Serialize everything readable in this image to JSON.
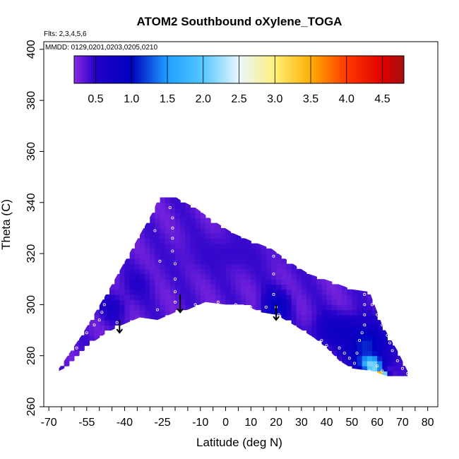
{
  "chart_data": {
    "type": "heatmap",
    "title": "ATOM2 Southbound oXylene_TOGA",
    "notes": {
      "flights": "Flts: 2,3,4,5,6",
      "dates": "MMDD: 0129,0201,0203,0205,0210"
    },
    "xlabel": "Latitude (deg N)",
    "ylabel": "Theta (C)",
    "xlim": [
      -72,
      84
    ],
    "ylim": [
      260,
      403
    ],
    "x_ticks": [
      -70,
      -65,
      -60,
      -55,
      -50,
      -45,
      -40,
      -35,
      -30,
      -25,
      -20,
      -15,
      -10,
      -5,
      0,
      5,
      10,
      15,
      20,
      25,
      30,
      35,
      40,
      45,
      50,
      55,
      60,
      65,
      70,
      75,
      80
    ],
    "x_tick_labels": [
      "-70",
      "-55",
      "-40",
      "-25",
      "-10",
      "0",
      "10",
      "20",
      "30",
      "40",
      "50",
      "60",
      "70",
      "80"
    ],
    "x_tick_label_values": [
      -70,
      -55,
      -40,
      -25,
      -10,
      0,
      10,
      20,
      30,
      40,
      50,
      60,
      70,
      80
    ],
    "y_tick_labels": [
      "260",
      "280",
      "300",
      "320",
      "340",
      "360",
      "380",
      "400"
    ],
    "y_tick_values": [
      260,
      280,
      300,
      320,
      340,
      360,
      380,
      400
    ],
    "colorbar": {
      "range": [
        0.2,
        4.8
      ],
      "tick_labels": [
        "0.5",
        "1.0",
        "1.5",
        "2.0",
        "2.5",
        "3.0",
        "3.5",
        "4.0",
        "4.5"
      ],
      "tick_values": [
        0.5,
        1.0,
        1.5,
        2.0,
        2.5,
        3.0,
        3.5,
        4.0,
        4.5
      ],
      "stops": [
        {
          "v": 0.2,
          "c": "#8a2be2"
        },
        {
          "v": 0.5,
          "c": "#2200c8"
        },
        {
          "v": 1.0,
          "c": "#0000c0"
        },
        {
          "v": 1.5,
          "c": "#1ea0ff"
        },
        {
          "v": 2.0,
          "c": "#55c8ff"
        },
        {
          "v": 2.5,
          "c": "#eaf6ff"
        },
        {
          "v": 3.0,
          "c": "#fff07a"
        },
        {
          "v": 3.5,
          "c": "#ffae00"
        },
        {
          "v": 4.0,
          "c": "#ff3800"
        },
        {
          "v": 4.5,
          "c": "#e00000"
        },
        {
          "v": 4.8,
          "c": "#a01010"
        }
      ]
    },
    "field": {
      "background_value": 0.35,
      "boundary_top": [
        [
          -66,
          275
        ],
        [
          -57,
          288
        ],
        [
          -45,
          308
        ],
        [
          -37,
          322
        ],
        [
          -29,
          336
        ],
        [
          -26,
          343
        ],
        [
          -21,
          343
        ],
        [
          -18,
          341
        ],
        [
          -12,
          338
        ],
        [
          -5,
          333
        ],
        [
          3,
          328
        ],
        [
          10,
          325
        ],
        [
          18,
          322
        ],
        [
          25,
          317
        ],
        [
          33,
          312
        ],
        [
          42,
          309
        ],
        [
          50,
          306
        ],
        [
          57,
          305
        ],
        [
          62,
          292
        ],
        [
          68,
          282
        ],
        [
          72,
          274
        ]
      ],
      "boundary_bottom": [
        [
          72,
          272
        ],
        [
          64,
          272
        ],
        [
          58,
          274
        ],
        [
          50,
          275
        ],
        [
          45,
          278
        ],
        [
          40,
          283
        ],
        [
          35,
          287
        ],
        [
          27,
          292
        ],
        [
          20,
          296
        ],
        [
          14,
          297
        ],
        [
          7,
          300
        ],
        [
          0,
          300
        ],
        [
          -8,
          301
        ],
        [
          -15,
          298
        ],
        [
          -20,
          297
        ],
        [
          -27,
          294
        ],
        [
          -34,
          295
        ],
        [
          -41,
          292
        ],
        [
          -47,
          289
        ],
        [
          -53,
          285
        ],
        [
          -58,
          280
        ],
        [
          -62,
          276
        ],
        [
          -66,
          274
        ]
      ],
      "features": [
        {
          "x": 20,
          "y": 299,
          "v": 1.0,
          "rx": 5,
          "ry": 6
        },
        {
          "x": -45,
          "y": 299,
          "v": 0.6,
          "rx": 5,
          "ry": 5
        },
        {
          "x": 55,
          "y": 285,
          "v": 1.2,
          "rx": 8,
          "ry": 7
        },
        {
          "x": 57,
          "y": 278,
          "v": 1.6,
          "rx": 5,
          "ry": 3
        },
        {
          "x": 58,
          "y": 276,
          "v": 2.4,
          "rx": 3,
          "ry": 2
        },
        {
          "x": 60,
          "y": 273,
          "v": 3.6,
          "rx": 2,
          "ry": 1.5
        },
        {
          "x": 62,
          "y": 272,
          "v": 4.3,
          "rx": 2,
          "ry": 1.2
        },
        {
          "x": 45,
          "y": 290,
          "v": 0.8,
          "rx": 10,
          "ry": 6
        },
        {
          "x": -35,
          "y": 308,
          "v": 0.5,
          "rx": 6,
          "ry": 6
        },
        {
          "x": 0,
          "y": 320,
          "v": 0.45,
          "rx": 20,
          "ry": 8
        }
      ]
    },
    "samples": [
      [
        -59,
        283
      ],
      [
        -55,
        289
      ],
      [
        -52,
        292
      ],
      [
        -50,
        294
      ],
      [
        -49,
        297
      ],
      [
        -48,
        300
      ],
      [
        -47,
        305
      ],
      [
        -46,
        310
      ],
      [
        -45,
        313
      ],
      [
        -45,
        318
      ],
      [
        -42,
        290
      ],
      [
        -43,
        293
      ],
      [
        -23,
        345
      ],
      [
        -22,
        343
      ],
      [
        -22,
        338
      ],
      [
        -21,
        334
      ],
      [
        -21,
        330
      ],
      [
        -21,
        326
      ],
      [
        -21,
        321
      ],
      [
        -20,
        316
      ],
      [
        -20,
        310
      ],
      [
        -20,
        305
      ],
      [
        -20,
        301
      ],
      [
        -28,
        329
      ],
      [
        -26,
        317
      ],
      [
        -27,
        298
      ],
      [
        -12,
        300
      ],
      [
        -3,
        301
      ],
      [
        4,
        300
      ],
      [
        10,
        299
      ],
      [
        16,
        299
      ],
      [
        19,
        319
      ],
      [
        19,
        312
      ],
      [
        19,
        304
      ],
      [
        20,
        299
      ],
      [
        21,
        296
      ],
      [
        22,
        293
      ],
      [
        38,
        286
      ],
      [
        40,
        284
      ],
      [
        45,
        283
      ],
      [
        47,
        281
      ],
      [
        49,
        279
      ],
      [
        51,
        277
      ],
      [
        52,
        281
      ],
      [
        53,
        286
      ],
      [
        54,
        289
      ],
      [
        55,
        292
      ],
      [
        55,
        296
      ],
      [
        55,
        300
      ],
      [
        55,
        304
      ],
      [
        58,
        300
      ],
      [
        60,
        296
      ],
      [
        62,
        292
      ],
      [
        64,
        288
      ],
      [
        65,
        285
      ],
      [
        66,
        282
      ],
      [
        68,
        278
      ],
      [
        70,
        275
      ],
      [
        72,
        273
      ],
      [
        60,
        276
      ],
      [
        57,
        274
      ],
      [
        62,
        274
      ]
    ],
    "arrows": [
      {
        "x": -42,
        "y_top": 294,
        "y_tip": 289
      },
      {
        "x": -18,
        "y_top": 304,
        "y_tip": 297
      },
      {
        "x": 20,
        "y_top": 300,
        "y_tip": 294
      }
    ]
  }
}
